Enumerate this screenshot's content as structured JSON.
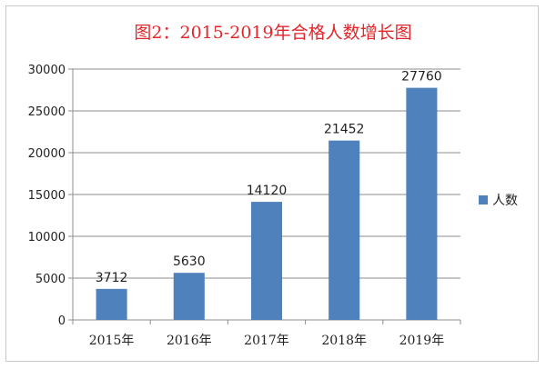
{
  "chart_data": {
    "type": "bar",
    "title": "图2：2015-2019年合格人数增长图",
    "categories": [
      "2015年",
      "2016年",
      "2017年",
      "2018年",
      "2019年"
    ],
    "series": [
      {
        "name": "人数",
        "values": [
          3712,
          5630,
          14120,
          21452,
          27760
        ]
      }
    ],
    "ylim": [
      0,
      30000
    ],
    "yticks": [
      0,
      5000,
      10000,
      15000,
      20000,
      25000,
      30000
    ],
    "grid": true,
    "legend": "right",
    "colors": {
      "bar": "#4f81bd",
      "grid": "#8c8c8c",
      "title": "#e3262b"
    }
  }
}
